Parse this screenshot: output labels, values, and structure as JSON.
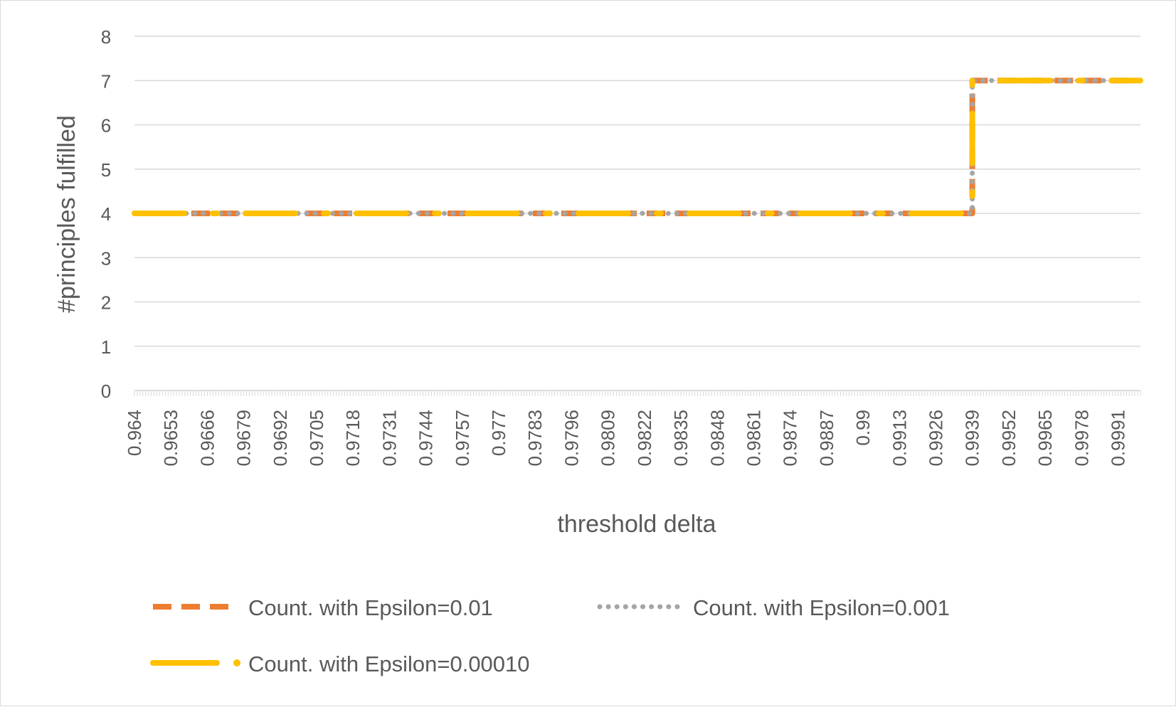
{
  "chart_data": {
    "type": "line",
    "title": "",
    "xlabel": "threshold delta",
    "ylabel": "#principles fulfilled",
    "ylim": [
      0,
      8
    ],
    "y_ticks": [
      0,
      1,
      2,
      3,
      4,
      5,
      6,
      7,
      8
    ],
    "x_start": 0.964,
    "x_end": 0.9999,
    "x_step": 0.0001,
    "x_tick_labels": [
      "0.964",
      "0.9653",
      "0.9666",
      "0.9679",
      "0.9692",
      "0.9705",
      "0.9718",
      "0.9731",
      "0.9744",
      "0.9757",
      "0.977",
      "0.9783",
      "0.9796",
      "0.9809",
      "0.9822",
      "0.9835",
      "0.9848",
      "0.9861",
      "0.9874",
      "0.9887",
      "0.99",
      "0.9913",
      "0.9926",
      "0.9939",
      "0.9952",
      "0.9965",
      "0.9978",
      "0.9991"
    ],
    "grid": true,
    "legend_position": "bottom",
    "series": [
      {
        "name": "Count. with Epsilon=0.01",
        "color": "#ED7D31",
        "style": "dash",
        "steps": [
          {
            "x": 0.964,
            "y": 4
          },
          {
            "x": 0.9939,
            "y": 7
          },
          {
            "x": 0.9999,
            "y": 7
          }
        ]
      },
      {
        "name": "Count. with Epsilon=0.001",
        "color": "#A5A5A5",
        "style": "dot",
        "steps": [
          {
            "x": 0.964,
            "y": 4
          },
          {
            "x": 0.9939,
            "y": 7
          },
          {
            "x": 0.9999,
            "y": 7
          }
        ]
      },
      {
        "name": "Count. with Epsilon=0.00010",
        "color": "#FFC000",
        "style": "longdash-dot",
        "steps": [
          {
            "x": 0.964,
            "y": 4
          },
          {
            "x": 0.9939,
            "y": 7
          },
          {
            "x": 0.9999,
            "y": 7
          }
        ]
      }
    ]
  }
}
